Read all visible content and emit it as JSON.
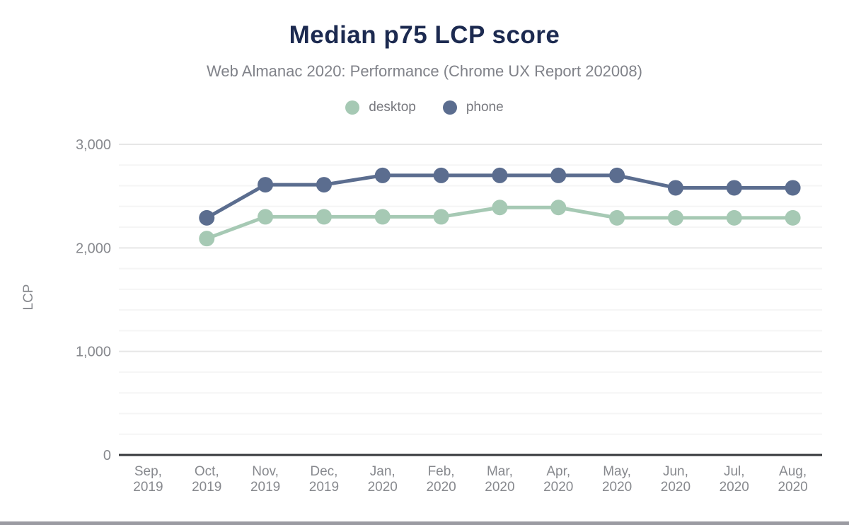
{
  "chart_data": {
    "type": "line",
    "title": "Median p75 LCP score",
    "subtitle": "Web Almanac 2020: Performance (Chrome UX Report 202008)",
    "xlabel": "",
    "ylabel": "LCP",
    "categories": [
      "Sep, 2019",
      "Oct, 2019",
      "Nov, 2019",
      "Dec, 2019",
      "Jan, 2020",
      "Feb, 2020",
      "Mar, 2020",
      "Apr, 2020",
      "May, 2020",
      "Jun, 2020",
      "Jul, 2020",
      "Aug, 2020"
    ],
    "series": [
      {
        "name": "desktop",
        "color": "#a6c9b4",
        "values": [
          null,
          2090,
          2300,
          2300,
          2300,
          2300,
          2390,
          2390,
          2290,
          2290,
          2290,
          2290
        ]
      },
      {
        "name": "phone",
        "color": "#5b6d8f",
        "values": [
          null,
          2290,
          2610,
          2610,
          2700,
          2700,
          2700,
          2700,
          2700,
          2580,
          2580,
          2580
        ]
      }
    ],
    "ylim": [
      0,
      3000
    ],
    "yticks": [
      0,
      1000,
      2000,
      3000
    ],
    "ytick_labels": [
      "0",
      "1,000",
      "2,000",
      "3,000"
    ],
    "minor_tick_step": 200,
    "grid": true,
    "legend_position": "top"
  },
  "colors": {
    "title": "#1c2a50",
    "subtitle": "#808289",
    "legend_text": "#77787e",
    "axis_text": "#87898e",
    "axis_line": "#36383b",
    "grid_major": "#e6e6e6",
    "grid_minor": "#f5f5f5",
    "bottom_bar": "#9b9ba2",
    "background": "#ffffff"
  }
}
